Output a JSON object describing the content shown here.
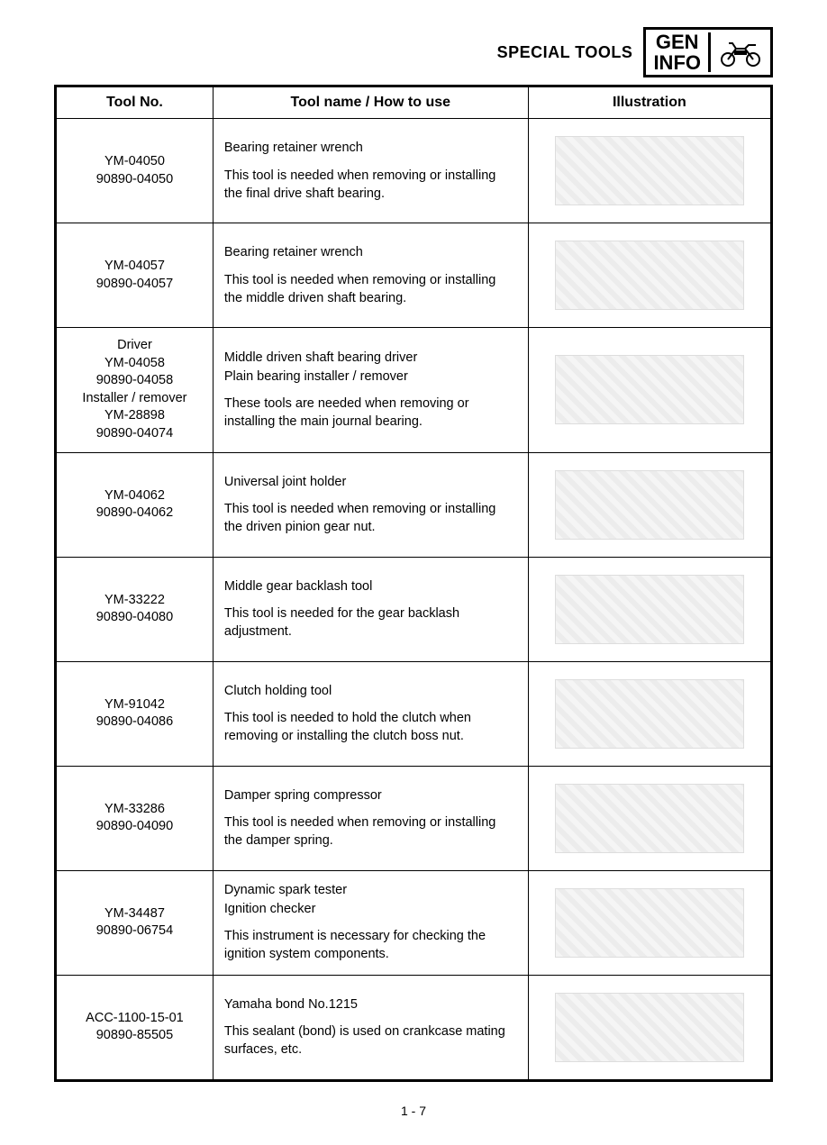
{
  "header": {
    "title": "SPECIAL TOOLS",
    "box_line1": "GEN",
    "box_line2": "INFO"
  },
  "table": {
    "columns": [
      "Tool No.",
      "Tool name / How to use",
      "Illustration"
    ],
    "column_widths_pct": [
      22,
      44,
      34
    ],
    "border_color": "#000000",
    "font_family": "Arial",
    "header_fontsize_pt": 12,
    "cell_fontsize_pt": 11,
    "rows": [
      {
        "tool_no": "YM-04050\n90890-04050",
        "tool_name": "Bearing retainer wrench",
        "how_to_use": "This tool is needed when removing or installing the final drive shaft bearing.",
        "illustration": "bearing-retainer-wrench-round"
      },
      {
        "tool_no": "YM-04057\n90890-04057",
        "tool_name": "Bearing retainer wrench",
        "how_to_use": "This tool is needed when removing or installing the middle driven shaft bearing.",
        "illustration": "bearing-retainer-wrench-cylinder"
      },
      {
        "tool_no": "Driver\nYM-04058\n90890-04058\nInstaller / remover\nYM-28898\n90890-04074",
        "tool_name": "Middle driven shaft bearing driver\nPlain bearing installer / remover",
        "how_to_use": "These tools are needed when removing or installing the main journal bearing.",
        "illustration": "driver-installer-remover-set"
      },
      {
        "tool_no": "YM-04062\n90890-04062",
        "tool_name": "Universal joint holder",
        "how_to_use": "This tool is needed when removing or installing the driven pinion gear nut.",
        "illustration": "universal-joint-holder"
      },
      {
        "tool_no": "YM-33222\n90890-04080",
        "tool_name": "Middle gear backlash tool",
        "how_to_use": "This tool is needed for the gear backlash adjustment.",
        "illustration": "middle-gear-backlash-tool"
      },
      {
        "tool_no": "YM-91042\n90890-04086",
        "tool_name": "Clutch holding tool",
        "how_to_use": "This tool is needed to hold the clutch when removing or installing the clutch boss nut.",
        "illustration": "clutch-holding-tool"
      },
      {
        "tool_no": "YM-33286\n90890-04090",
        "tool_name": "Damper spring compressor",
        "how_to_use": "This tool is needed when removing or installing the damper spring.",
        "illustration": "damper-spring-compressor"
      },
      {
        "tool_no": "YM-34487\n90890-06754",
        "tool_name": "Dynamic spark tester\nIgnition checker",
        "how_to_use": "This instrument is necessary for checking the ignition system components.",
        "illustration": "dynamic-spark-tester"
      },
      {
        "tool_no": "ACC-1100-15-01\n90890-85505",
        "tool_name": "Yamaha bond No.1215",
        "how_to_use": "This sealant (bond) is used on crankcase mating surfaces, etc.",
        "illustration": "yamaha-bond-tube"
      }
    ]
  },
  "page_number": "1 - 7",
  "colors": {
    "text": "#000000",
    "background": "#ffffff",
    "border": "#000000"
  }
}
